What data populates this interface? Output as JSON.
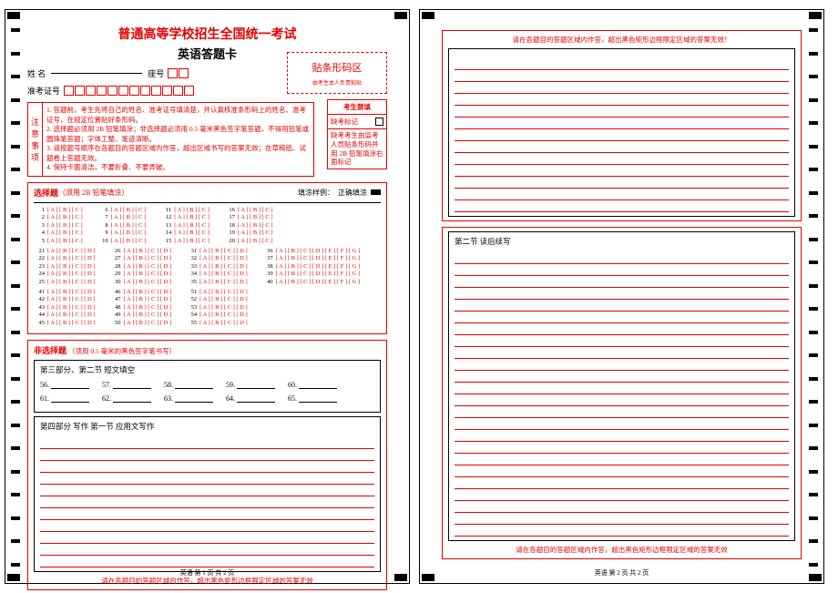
{
  "title1": "普通高等学校招生全国统一考试",
  "title2": "英语答题卡",
  "name_lbl": "姓 名",
  "seat_lbl": "座号",
  "ticket_lbl": "准考证号",
  "barcode": {
    "title": "贴条形码区",
    "sub": "由考生本人负责粘贴"
  },
  "notice": {
    "label": "注意事项",
    "l1": "1. 答题前，考生先将自己的姓名、准考证号填清楚，并认真核准条形码上的姓名、准考证号，在规定位置贴好条形码。",
    "l2": "2. 选择题必须用 2B 铅笔填涂；非选择题必须用 0.5 毫米黑色签字笔答题，不得用铅笔或圆珠笔答题；字体工整、笔迹清晰。",
    "l3": "3. 请按题号顺序在各题目的答题区域内作答，超出区域书写的答案无效；在草稿纸、试题卷上答题无效。",
    "l4": "4. 保持卡面清洁，不要折叠、不要弄破。"
  },
  "forbid": {
    "h": "考生禁填",
    "r1": "缺考标记",
    "t1": "缺考考生由监考人员贴条形码并用 2B 铅笔填涂右面标记"
  },
  "mcq": {
    "title": "选择题",
    "sub": "（须用 2B 铅笔填涂）",
    "sample_lbl": "填涂样例：",
    "sample_txt": "正确填涂"
  },
  "opts3": "[ A ] [ B ] [ C ]",
  "opts4": "[ A ] [ B ] [ C ] [ D ]",
  "opts7": "[ A ] [ B ] [ C ] [ D ] [ E ] [ F ] [ G ]",
  "nmcq": {
    "title": "非选择题",
    "sub": "（须用 0.5 毫米的黑色签字笔书写）"
  },
  "p3": {
    "title": "第三部分、第二节  短文填空",
    "q": [
      "56.",
      "57.",
      "58.",
      "59.",
      "60.",
      "61.",
      "62.",
      "63.",
      "64.",
      "65."
    ]
  },
  "p4": {
    "title": "第四部分  写作    第一节  应用文写作"
  },
  "p5": {
    "title": "第二节  读后续写"
  },
  "warn": "请在各题目的答题区域内作答，超出黑色矩形边框限定区域的答案无效",
  "warn2": "请在各题目的答题区域内作答，超出黑色矩形边框限定区域的答案无效！",
  "pg1": "英语    第 1 页    共 2 页",
  "pg2": "英语    第 2 页    共 2 页"
}
